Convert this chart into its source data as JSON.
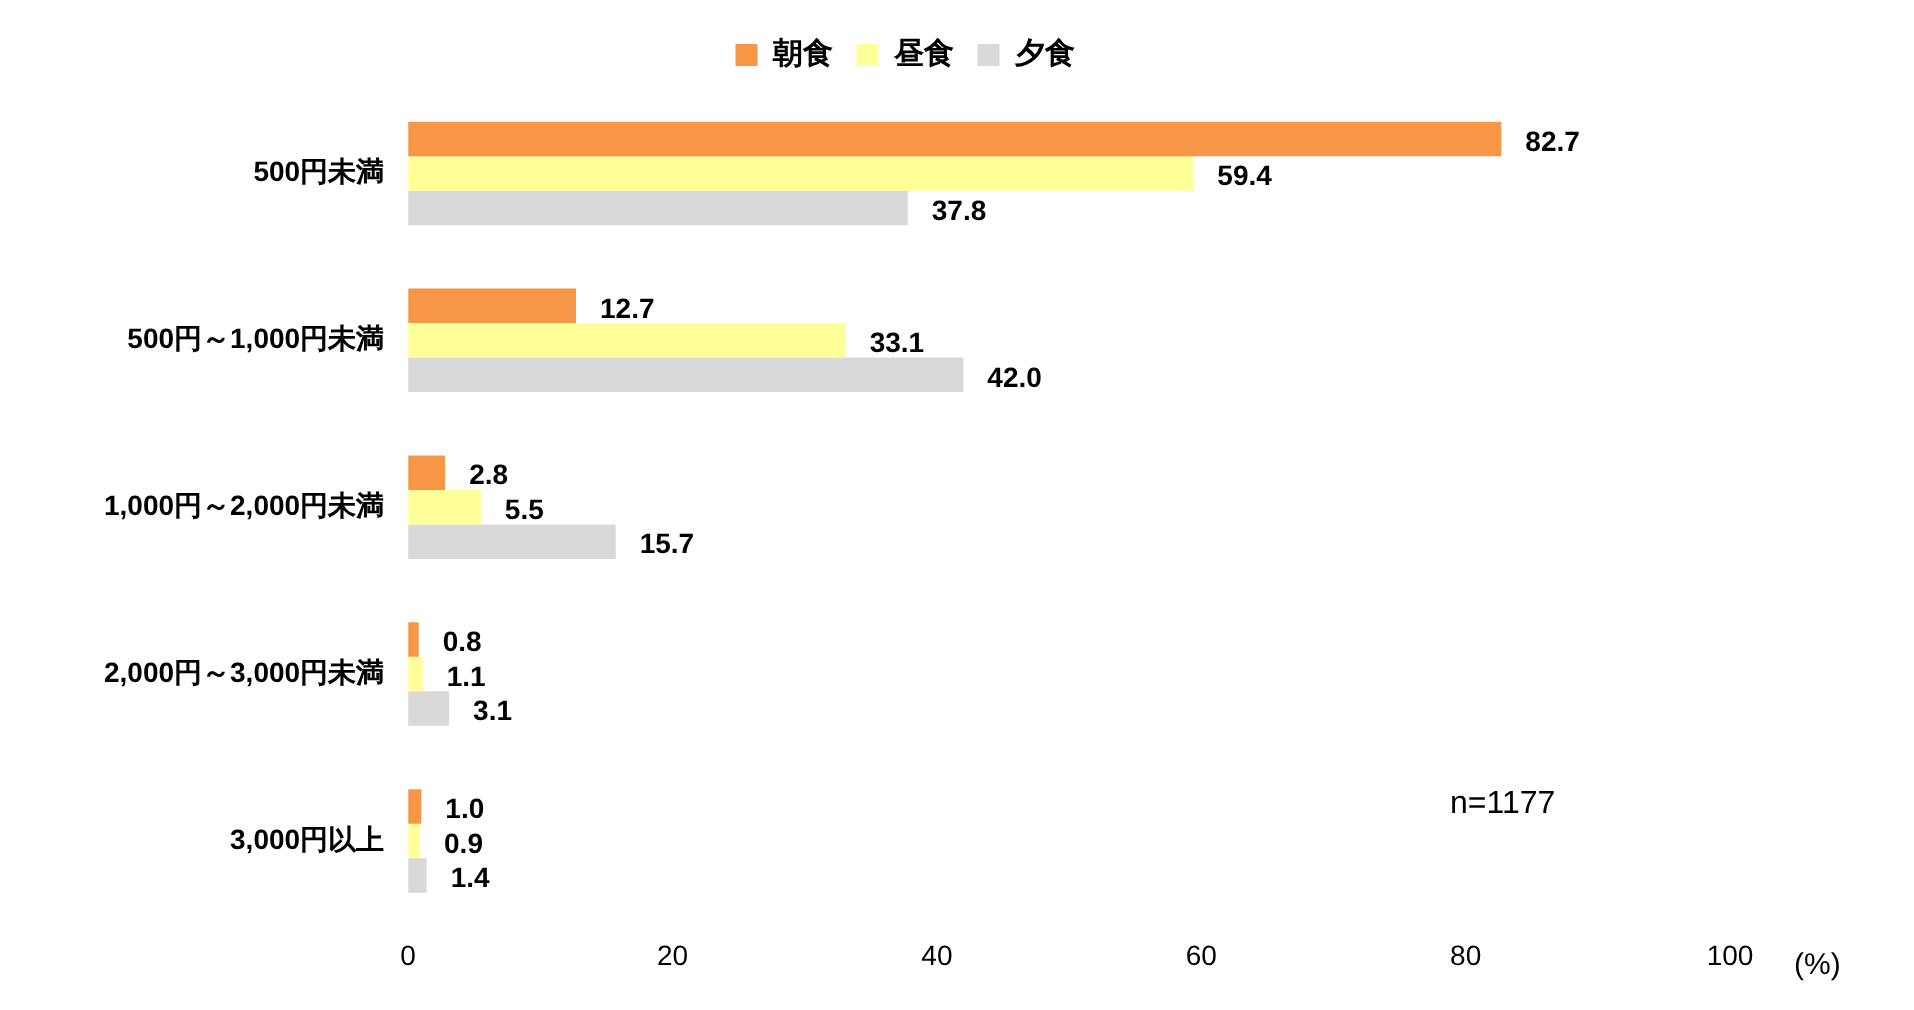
{
  "chart_data": {
    "type": "bar",
    "orientation": "horizontal",
    "xlabel": "(%)",
    "categories": [
      "500円未満",
      "500円～1,000円未満",
      "1,000円～2,000円未満",
      "2,000円～3,000円未満",
      "3,000円以上"
    ],
    "series": [
      {
        "name": "朝食",
        "color": "#f79646",
        "values": [
          82.7,
          12.7,
          2.8,
          0.8,
          1.0
        ],
        "value_labels": [
          "82.7",
          "12.7",
          "2.8",
          "0.8",
          "1.0"
        ]
      },
      {
        "name": "昼食",
        "color": "#ffff99",
        "values": [
          59.4,
          33.1,
          5.5,
          1.1,
          0.9
        ],
        "value_labels": [
          "59.4",
          "33.1",
          "5.5",
          "1.1",
          "0.9"
        ]
      },
      {
        "name": "夕食",
        "color": "#d9d9d9",
        "values": [
          37.8,
          42.0,
          15.7,
          3.1,
          1.4
        ],
        "value_labels": [
          "37.8",
          "42.0",
          "15.7",
          "3.1",
          "1.4"
        ]
      }
    ],
    "xlim": [
      0,
      100
    ],
    "xticks": [
      0,
      20,
      40,
      60,
      80,
      100
    ],
    "grid": false,
    "legend": "top",
    "annotations": [
      "n=1177"
    ]
  }
}
